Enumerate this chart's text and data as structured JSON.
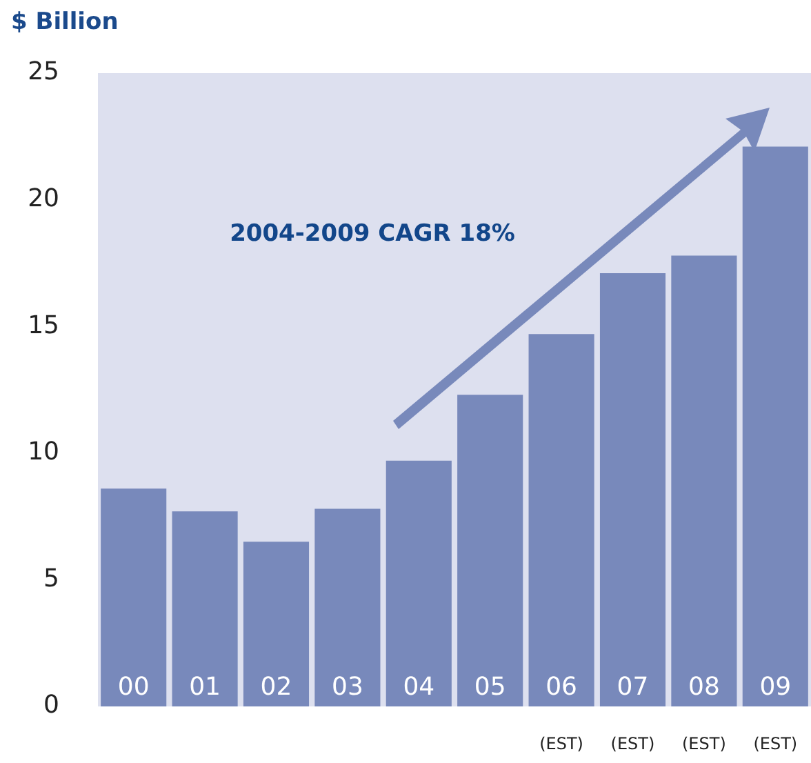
{
  "chart_data": {
    "type": "bar",
    "ylabel": "$ Billion",
    "categories": [
      "00",
      "01",
      "02",
      "03",
      "04",
      "05",
      "06",
      "07",
      "08",
      "09"
    ],
    "values": [
      8.6,
      7.7,
      6.5,
      7.8,
      9.7,
      12.3,
      14.7,
      17.1,
      17.8,
      22.1
    ],
    "color": "#7889bb",
    "ylim": [
      0,
      25
    ],
    "yticks": [
      0,
      5,
      10,
      15,
      20,
      25
    ],
    "grid": false,
    "legend": false,
    "annotations": [
      "2004-2009 CAGR 18%",
      "(EST)",
      "(EST)",
      "(EST)",
      "(EST)"
    ]
  }
}
